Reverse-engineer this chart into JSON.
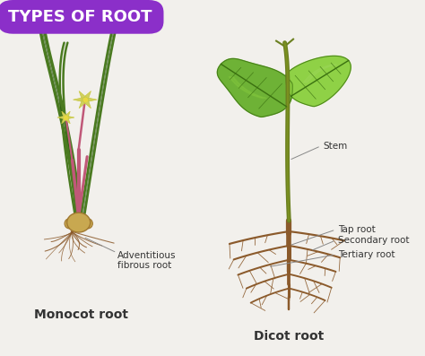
{
  "title": "TYPES OF ROOT",
  "title_bg_color": "#8B2FC9",
  "title_text_color": "#FFFFFF",
  "bg_color": "#F2F0EC",
  "label_monocot": "Monocot root",
  "label_dicot": "Dicot root",
  "annotations_dicot": [
    "Stem",
    "Tap root",
    "Secondary root",
    "Tertiary root"
  ],
  "annotations_monocot": [
    "Adventitious\nfibrous root"
  ],
  "stem_color": "#7A7A3A",
  "stem_color2": "#6B8020",
  "root_color": "#8B5A2B",
  "leaf_green_dark": "#4A8A18",
  "leaf_green_mid": "#6AB030",
  "leaf_green_light": "#8CD040",
  "leaf_vein_color": "#3A7010",
  "monocot_stem_color": "#C05878",
  "monocot_leaf_color": "#4A7A20",
  "monocot_leaf_dark": "#2A5A10",
  "bulb_color": "#C8A850",
  "bulb_edge": "#A07830",
  "flower_color": "#C8C840",
  "flower_petal": "#D0D060",
  "label_color": "#333333",
  "annotation_line_color": "#888888",
  "font_size_title": 13,
  "font_size_labels": 10,
  "font_size_annotations": 7.5
}
